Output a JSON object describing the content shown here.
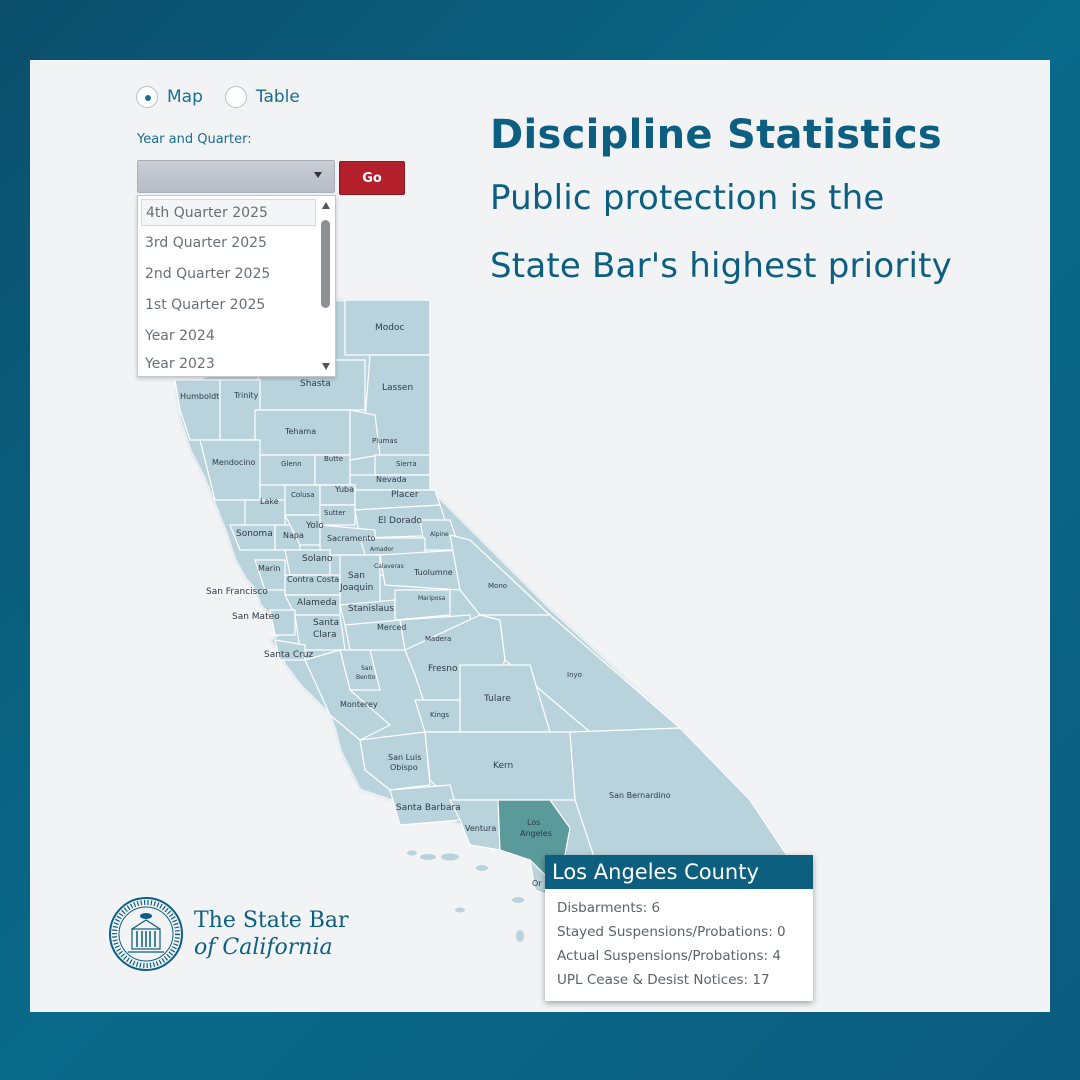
{
  "controls": {
    "view_options": [
      {
        "label": "Map",
        "selected": true
      },
      {
        "label": "Table",
        "selected": false
      }
    ],
    "year_quarter_label": "Year and Quarter:",
    "select_value": "",
    "go_label": "Go",
    "dropdown_options": [
      "4th Quarter 2025",
      "3rd Quarter 2025",
      "2nd Quarter 2025",
      "1st Quarter 2025",
      "Year 2024",
      "Year 2023"
    ]
  },
  "header": {
    "title": "Discipline Statistics",
    "subtitle_line1": "Public protection is the",
    "subtitle_line2": "State Bar's highest priority"
  },
  "map": {
    "highlight_color": "#5a9a9b",
    "county_color": "#b9d3dc",
    "counties": {
      "modoc": "Modoc",
      "lassen": "Lassen",
      "shasta": "Shasta",
      "humboldt": "Humboldt",
      "trinity": "Trinity",
      "tehama": "Tehama",
      "plumas": "Plumas",
      "mendocino": "Mendocino",
      "glenn": "Glenn",
      "butte": "Butte",
      "sierra": "Sierra",
      "nevada": "Nevada",
      "lake": "Lake",
      "colusa": "Colusa",
      "yuba": "Yuba",
      "placer": "Placer",
      "sutter": "Sutter",
      "el_dorado": "El Dorado",
      "sonoma": "Sonoma",
      "napa": "Napa",
      "yolo": "Yolo",
      "sacramento": "Sacramento",
      "alpine": "Alpine",
      "amador": "Amador",
      "solano": "Solano",
      "calaveras": "Calaveras",
      "marin": "Marin",
      "contra_costa": "Contra Costa",
      "san_joaquin": "San",
      "san_joaquin2": "Joaquin",
      "tuolumne": "Tuolumne",
      "mono": "Mono",
      "san_francisco": "San Francisco",
      "alameda": "Alameda",
      "stanislaus": "Stanislaus",
      "mariposa": "Mariposa",
      "san_mateo": "San Mateo",
      "santa_clara": "Santa",
      "santa_clara2": "Clara",
      "merced": "Merced",
      "madera": "Madera",
      "santa_cruz": "Santa Cruz",
      "fresno": "Fresno",
      "inyo": "Inyo",
      "san_benito": "San",
      "san_benito2": "Benito",
      "tulare": "Tulare",
      "monterey": "Monterey",
      "kings": "Kings",
      "san_luis_obispo": "San Luis",
      "san_luis_obispo2": "Obispo",
      "kern": "Kern",
      "san_bernardino": "San Bernardino",
      "santa_barbara": "Santa Barbara",
      "ventura": "Ventura",
      "los_angeles": "Los",
      "los_angeles2": "Angeles",
      "orange": "Or"
    }
  },
  "tooltip": {
    "title": "Los Angeles County",
    "rows": [
      "Disbarments: 6",
      "Stayed Suspensions/Probations: 0",
      "Actual Suspensions/Probations: 4",
      "UPL Cease & Desist Notices: 17"
    ]
  },
  "logo": {
    "line1": "The State Bar",
    "line2": "of California"
  }
}
